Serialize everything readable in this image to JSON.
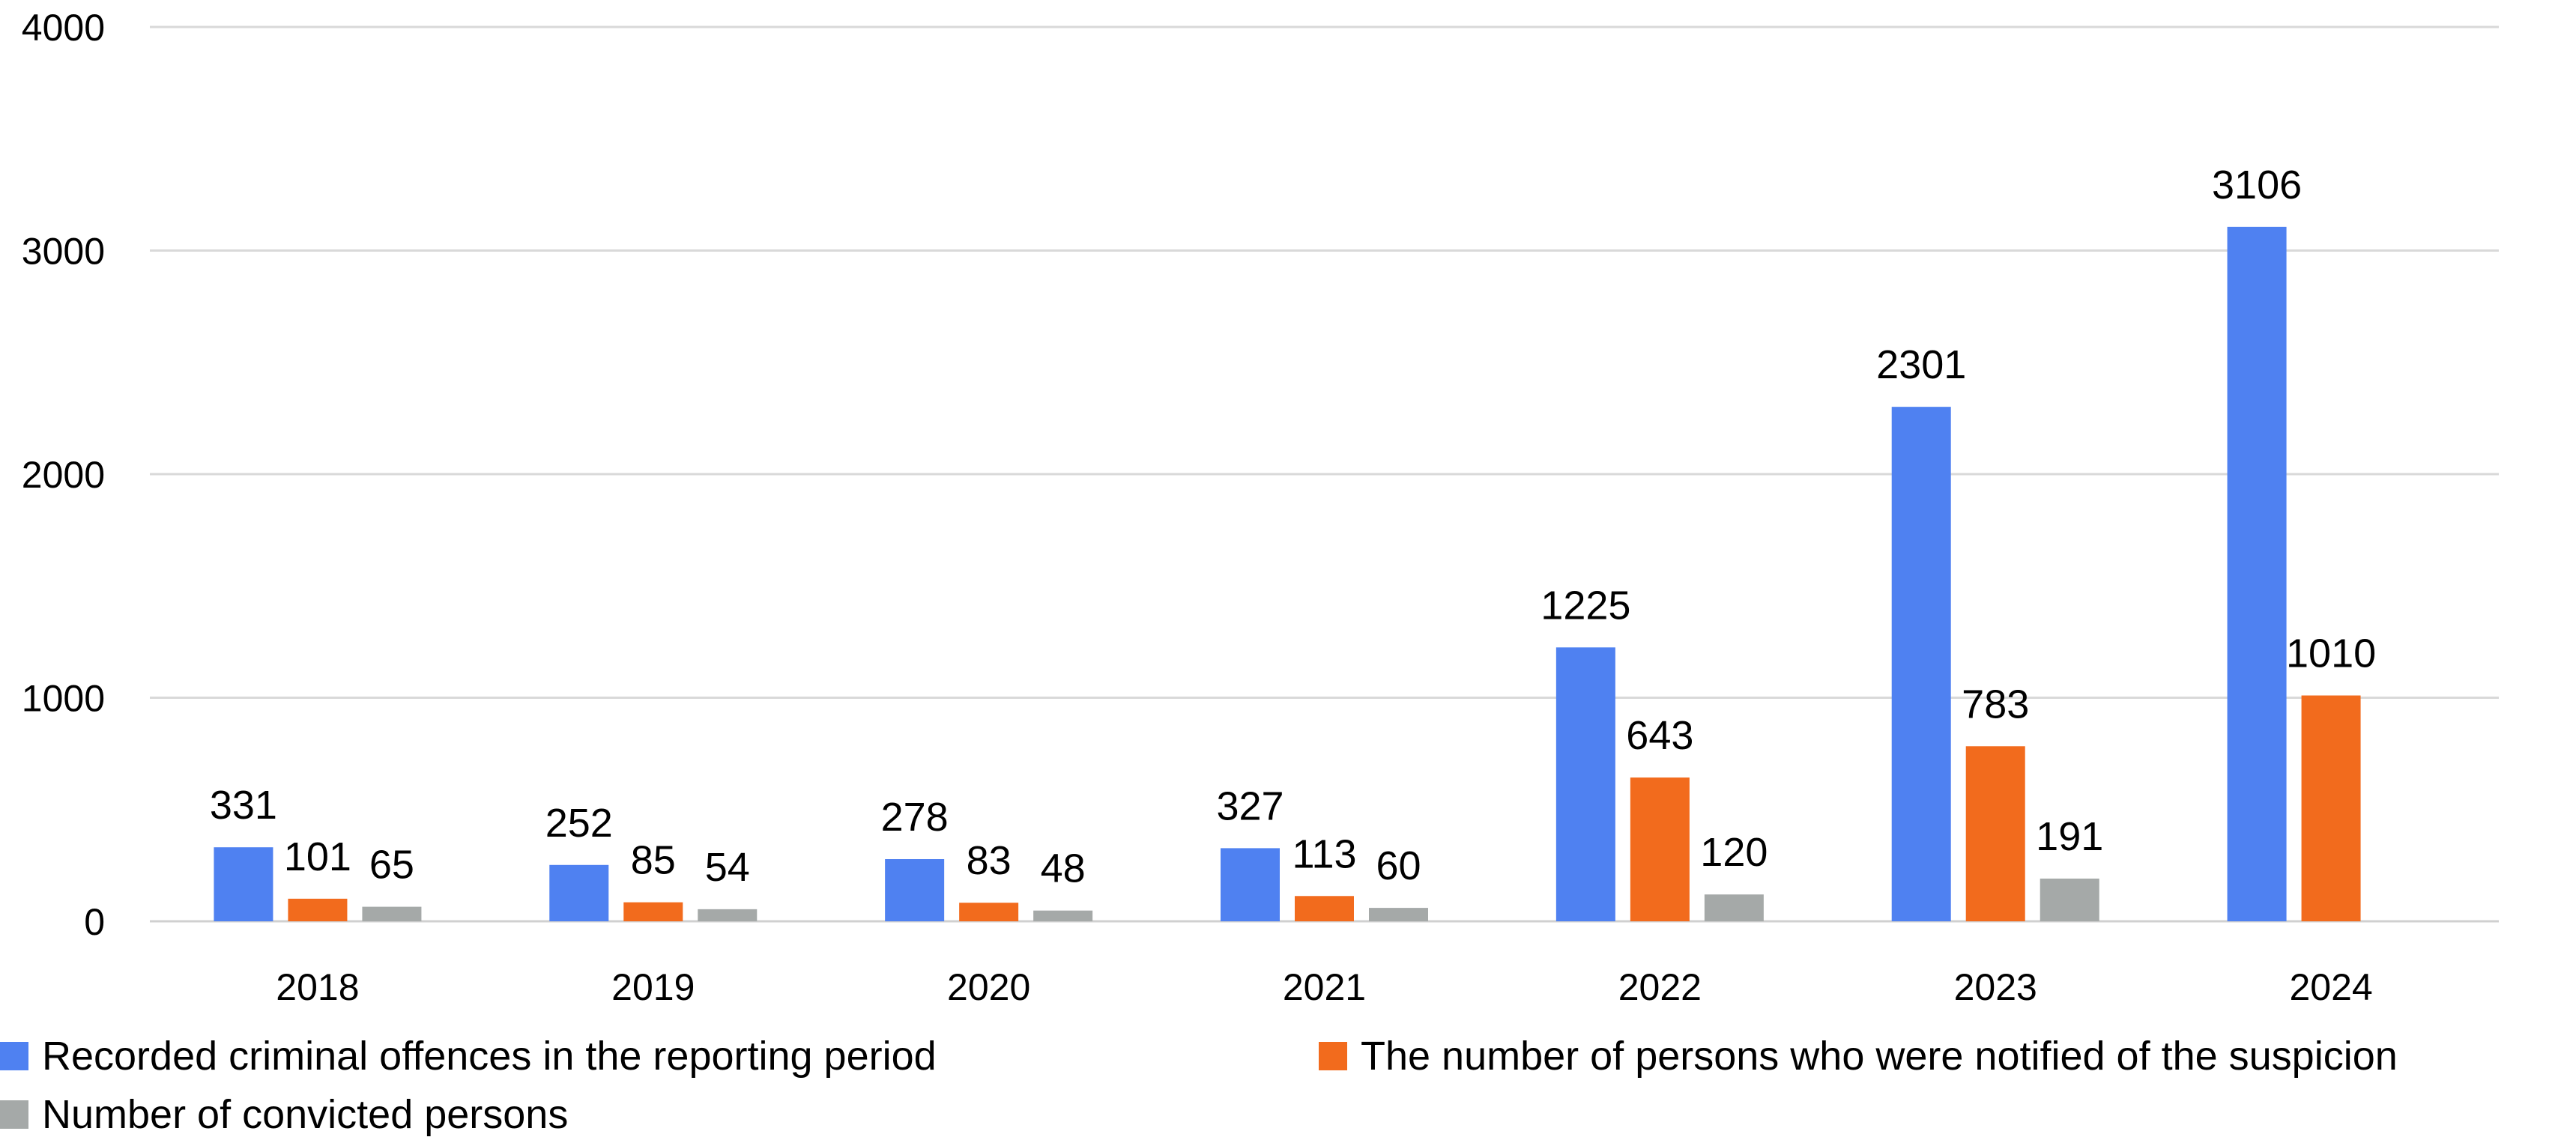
{
  "chart_data": {
    "type": "bar",
    "title": "",
    "xlabel": "",
    "ylabel": "",
    "categories": [
      "2018",
      "2019",
      "2020",
      "2021",
      "2022",
      "2023",
      "2024"
    ],
    "ylim": [
      0,
      4000
    ],
    "yticks": [
      0,
      1000,
      2000,
      3000,
      4000
    ],
    "grid": true,
    "legend_position": "bottom",
    "series": [
      {
        "name": "Recorded criminal offences in the reporting period",
        "color": "#4f81f1",
        "values": [
          331,
          252,
          278,
          327,
          1225,
          2301,
          3106
        ],
        "labels": [
          "331",
          "252",
          "278",
          "327",
          "1225",
          "2301",
          "3106"
        ]
      },
      {
        "name": "The number of persons who were notified of the suspicion",
        "color": "#f26b1d",
        "values": [
          101,
          85,
          83,
          113,
          643,
          783,
          1010
        ],
        "labels": [
          "101",
          "85",
          "83",
          "113",
          "643",
          "783",
          "1010"
        ]
      },
      {
        "name": "Number of convicted persons",
        "color": "#a5a9a8",
        "values": [
          65,
          54,
          48,
          60,
          120,
          191,
          null
        ],
        "labels": [
          "65",
          "54",
          "48",
          "60",
          "120",
          "191",
          null
        ]
      }
    ]
  }
}
